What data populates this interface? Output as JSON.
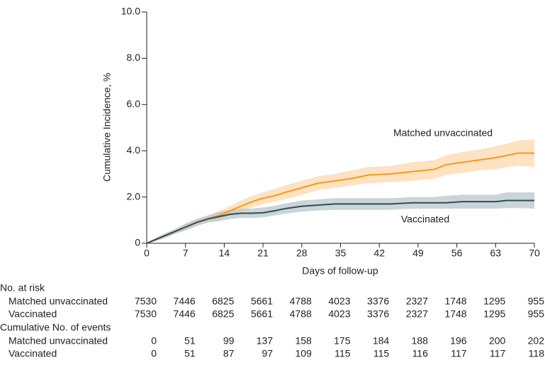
{
  "chart_data": {
    "type": "line",
    "ylabel": "Cumulative Incidence, %",
    "xlabel": "Days of follow-up",
    "x": [
      0,
      1,
      3,
      5,
      7,
      9,
      11,
      13,
      15,
      17,
      19,
      21,
      23,
      25,
      28,
      31,
      34,
      37,
      40,
      44,
      48,
      52,
      54,
      57,
      60,
      63,
      65,
      67,
      70
    ],
    "series": [
      {
        "name": "Matched unvaccinated",
        "color": "#f39a1f",
        "band_color": "#fdd5a6",
        "values": [
          0,
          0.1,
          0.3,
          0.5,
          0.7,
          0.9,
          1.05,
          1.2,
          1.4,
          1.6,
          1.8,
          1.95,
          2.05,
          2.2,
          2.4,
          2.6,
          2.7,
          2.8,
          2.95,
          3.0,
          3.1,
          3.2,
          3.4,
          3.5,
          3.6,
          3.7,
          3.8,
          3.9,
          3.9
        ],
        "lower": [
          0,
          0.05,
          0.2,
          0.4,
          0.6,
          0.75,
          0.9,
          1.0,
          1.2,
          1.4,
          1.55,
          1.7,
          1.8,
          1.9,
          2.1,
          2.3,
          2.4,
          2.5,
          2.6,
          2.65,
          2.7,
          2.8,
          2.95,
          3.05,
          3.15,
          3.2,
          3.3,
          3.35,
          3.3
        ],
        "upper": [
          0,
          0.15,
          0.4,
          0.6,
          0.85,
          1.05,
          1.2,
          1.4,
          1.6,
          1.85,
          2.05,
          2.2,
          2.35,
          2.5,
          2.7,
          2.9,
          3.0,
          3.15,
          3.3,
          3.35,
          3.5,
          3.6,
          3.8,
          3.95,
          4.05,
          4.2,
          4.3,
          4.45,
          4.5
        ]
      },
      {
        "name": "Vaccinated",
        "color": "#2e4d58",
        "band_color": "#b4c3c9",
        "values": [
          0,
          0.1,
          0.3,
          0.5,
          0.7,
          0.9,
          1.05,
          1.15,
          1.25,
          1.3,
          1.3,
          1.32,
          1.4,
          1.5,
          1.6,
          1.65,
          1.7,
          1.7,
          1.7,
          1.7,
          1.75,
          1.75,
          1.75,
          1.8,
          1.8,
          1.8,
          1.85,
          1.85,
          1.85
        ],
        "lower": [
          0,
          0.05,
          0.2,
          0.4,
          0.55,
          0.75,
          0.9,
          0.95,
          1.05,
          1.1,
          1.1,
          1.12,
          1.2,
          1.28,
          1.37,
          1.42,
          1.45,
          1.45,
          1.45,
          1.45,
          1.5,
          1.5,
          1.5,
          1.5,
          1.5,
          1.5,
          1.52,
          1.52,
          1.5
        ],
        "upper": [
          0,
          0.15,
          0.4,
          0.6,
          0.85,
          1.05,
          1.2,
          1.35,
          1.45,
          1.5,
          1.5,
          1.55,
          1.62,
          1.72,
          1.85,
          1.9,
          1.95,
          1.95,
          1.95,
          1.95,
          2.0,
          2.0,
          2.05,
          2.1,
          2.1,
          2.1,
          2.2,
          2.2,
          2.2
        ]
      }
    ],
    "xlim": [
      0,
      70
    ],
    "xticks": [
      0,
      7,
      14,
      21,
      28,
      35,
      42,
      49,
      56,
      63,
      70
    ],
    "ylim": [
      0,
      10
    ],
    "yticks": [
      0,
      {
        "value": 2,
        "label": "2.0"
      },
      {
        "value": 4,
        "label": "4.0"
      },
      {
        "value": 6,
        "label": "6.0"
      },
      {
        "value": 8,
        "label": "8.0"
      },
      {
        "value": 10,
        "label": "10.0"
      }
    ],
    "tables": [
      {
        "title": "No. at risk",
        "rows": [
          {
            "name": "Matched unvaccinated",
            "values": [
              7530,
              7446,
              6825,
              5661,
              4788,
              4023,
              3376,
              2327,
              1748,
              1295,
              955
            ]
          },
          {
            "name": "Vaccinated",
            "values": [
              7530,
              7446,
              6825,
              5661,
              4788,
              4023,
              3376,
              2327,
              1748,
              1295,
              955
            ]
          }
        ]
      },
      {
        "title": "Cumulative No. of events",
        "rows": [
          {
            "name": "Matched unvaccinated",
            "values": [
              0,
              51,
              99,
              137,
              158,
              175,
              184,
              188,
              196,
              200,
              202
            ]
          },
          {
            "name": "Vaccinated",
            "values": [
              0,
              51,
              87,
              97,
              109,
              115,
              115,
              116,
              117,
              117,
              118
            ]
          }
        ]
      }
    ]
  }
}
